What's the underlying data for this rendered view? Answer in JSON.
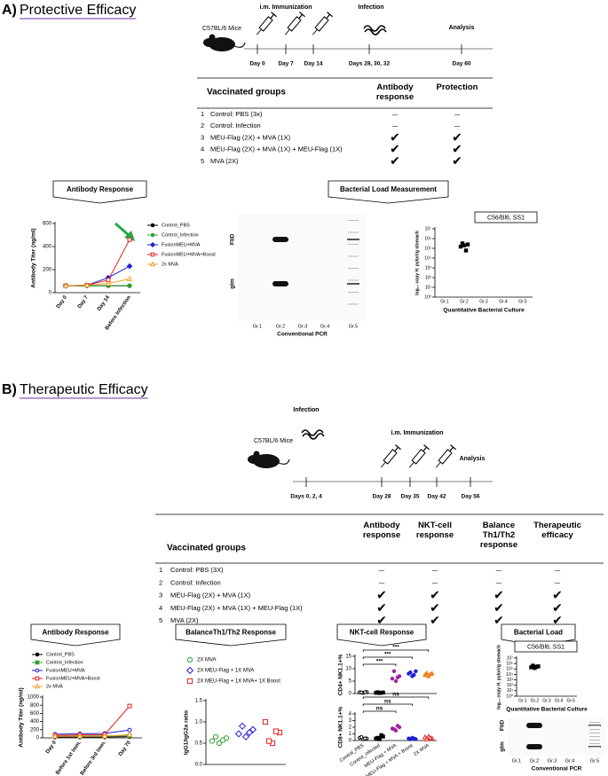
{
  "panel_a": {
    "letter": "A)",
    "title": "Protective Efficacy",
    "timeline": {
      "strain": "C57BL/6 Mice",
      "phases": [
        "i.m. Immunization",
        "Infection",
        "Analysis"
      ],
      "days": [
        "Day 0",
        "Day 7",
        "Day 14",
        "Days 28, 30, 32",
        "Day 60"
      ]
    },
    "table": {
      "columns": [
        "Vaccinated groups",
        "Antibody response",
        "Protection"
      ],
      "rows": [
        [
          "1",
          "Control: PBS (3x)",
          "—",
          "—"
        ],
        [
          "2",
          "Control: Infection",
          "—",
          "—"
        ],
        [
          "3",
          "MEU-Flag (2X) + MVA (1X)",
          "✔",
          "✔"
        ],
        [
          "4",
          "MEU-Flag (2X) + MVA (1X) + MEU-Flag (1X)",
          "✔",
          "✔"
        ],
        [
          "5",
          "MVA (2X)",
          "✔",
          "✔"
        ]
      ]
    },
    "banners": [
      "Antibody Response",
      "Bacterial Load Measurement"
    ],
    "pcr": {
      "bands": [
        "FliD",
        "glm"
      ],
      "lanes": [
        "Gr.1",
        "Gr.2",
        "Gr.3",
        "Gr.4",
        "Gr.5"
      ],
      "x_label": "Conventional PCR"
    }
  },
  "panel_b": {
    "letter": "B)",
    "title": "Therapeutic Efficacy",
    "timeline": {
      "strain": "C57BL/6 Mice",
      "phases": [
        "Infection",
        "i.m. Immunization",
        "Analysis"
      ],
      "days": [
        "Days 0, 2, 4",
        "Day 28",
        "Day 35",
        "Day 42",
        "Day 56"
      ]
    },
    "table": {
      "columns": [
        "Vaccinated groups",
        "Antibody response",
        "NKT-cell response",
        "Balance Th1/Th2 response",
        "Therapeutic efficacy"
      ],
      "rows": [
        [
          "1",
          "Control: PBS (3X)",
          "—",
          "—",
          "—",
          "—"
        ],
        [
          "2",
          "Control: Infection",
          "—",
          "—",
          "—",
          "—"
        ],
        [
          "3",
          "MEU-Flag (2X) + MVA (1X)",
          "✔",
          "✔",
          "✔",
          "✔"
        ],
        [
          "4",
          "MEU-Flag  (2X) + MVA (1X) + MEU-Flag  (1X)",
          "✔",
          "✔",
          "✔",
          "✔"
        ],
        [
          "5",
          "MVA (2X)",
          "✔",
          "✔",
          "✔",
          "✔"
        ]
      ]
    },
    "banners": [
      "Antibody Response",
      "BalanceTh1/Th2 Response",
      "NKT-cell Response",
      "Bacterial Load"
    ],
    "pcr": {
      "bands": [
        "FliD",
        "glm"
      ],
      "lanes": [
        "Gr.1",
        "Gr.2",
        "Gr.3",
        "Gr.4",
        "Gr.5"
      ],
      "x_label": "Conventional PCR"
    }
  },
  "chart_data": [
    {
      "type": "line",
      "y_label": "Antibody Titer (ng/ml)",
      "categories": [
        "Day 0",
        "Day 7",
        "Day 14",
        "Before Infection"
      ],
      "ylim": [
        0,
        600
      ],
      "yticks": [
        0,
        200,
        400,
        600
      ],
      "series": [
        {
          "name": "Control_PBS",
          "color": "#000000",
          "marker": "circle",
          "values": [
            60,
            60,
            60,
            60
          ]
        },
        {
          "name": "Control_Infection",
          "color": "#2ca02c",
          "marker": "circle",
          "values": [
            60,
            60,
            60,
            60
          ]
        },
        {
          "name": "FusionMEU+MVA",
          "color": "#1f1fd6",
          "marker": "diamond",
          "values": [
            60,
            65,
            130,
            230
          ]
        },
        {
          "name": "FusionMEU+MVA+Boost",
          "color": "#e02020",
          "marker": "square-open",
          "values": [
            60,
            65,
            110,
            460
          ]
        },
        {
          "name": "2x MVA",
          "color": "#f0a020",
          "marker": "triangle-open",
          "values": [
            60,
            65,
            80,
            120
          ]
        }
      ]
    },
    {
      "type": "dotplot",
      "label": "C56/Bl6, SS1",
      "y_label": "log₁₀ copy H. pylori/g stomach",
      "x_label": "Quantitative Bacterial Culture",
      "categories": [
        "Gr.1",
        "Gr.2",
        "Gr.3",
        "Gr.4",
        "Gr.5"
      ],
      "log_scale": true,
      "ylim": [
        1,
        10000000
      ],
      "yticks": [
        {
          "value": 1,
          "label": "10⁰"
        },
        {
          "value": 10,
          "label": "10¹"
        },
        {
          "value": 100,
          "label": "10²"
        },
        {
          "value": 1000,
          "label": "10³"
        },
        {
          "value": 10000,
          "label": "10⁴"
        },
        {
          "value": 100000,
          "label": "10⁵"
        },
        {
          "value": 1000000,
          "label": "10⁶"
        },
        {
          "value": 10000000,
          "label": "10⁷"
        }
      ],
      "color": "#000000",
      "marker": "square",
      "values": [
        [],
        [
          150000,
          250000,
          200000,
          320000,
          60000
        ],
        [],
        [],
        []
      ]
    },
    {
      "type": "line",
      "y_label": "Antibody Titer (ng/ml)",
      "categories": [
        "Day 0",
        "Before 1st Imm.",
        "Before 3rd Imm.",
        "Day 70"
      ],
      "ylim": [
        0,
        1000
      ],
      "yticks": [
        0,
        200,
        400,
        600,
        800,
        1000
      ],
      "series": [
        {
          "name": "Control_PBS",
          "color": "#000000",
          "marker": "circle",
          "values": [
            20,
            20,
            20,
            30
          ]
        },
        {
          "name": "Control_Infection",
          "color": "#2ca02c",
          "marker": "square",
          "values": [
            50,
            50,
            50,
            50
          ]
        },
        {
          "name": "FusionMEU+MVA",
          "color": "#1f1fd6",
          "marker": "circle-open",
          "values": [
            90,
            100,
            110,
            190
          ]
        },
        {
          "name": "FusionMEU+MVA+Boost",
          "color": "#e02020",
          "marker": "square-open",
          "values": [
            60,
            70,
            80,
            780
          ]
        },
        {
          "name": "2x MVA",
          "color": "#f0a020",
          "marker": "triangle-open",
          "values": [
            40,
            40,
            40,
            80
          ]
        }
      ]
    },
    {
      "type": "scatter",
      "y_label": "IgG1/IgG2a ratio",
      "ylim": [
        0,
        1.5
      ],
      "yticks": [
        {
          "value": 0,
          "label": "0.0"
        },
        0.5,
        {
          "value": 1,
          "label": "1.0"
        },
        1.5
      ],
      "series": [
        {
          "name": "2X MVA",
          "color": "#2ca02c",
          "marker": "circle-open",
          "values": [
            0.55,
            0.62,
            0.5,
            0.65,
            0.57
          ]
        },
        {
          "name": "2X MEU-Flag + 1X MVA",
          "color": "#1f1fd6",
          "marker": "diamond-open",
          "values": [
            0.72,
            0.82,
            0.65,
            0.9,
            0.75
          ]
        },
        {
          "name": "2X MEU-Flag + 1X MVA+ 1X Boost",
          "color": "#e02020",
          "marker": "square-open",
          "values": [
            1.0,
            0.75,
            0.5,
            0.55,
            0.78
          ]
        }
      ]
    },
    {
      "type": "dotplot",
      "y_label": "CD4+ NK1.1+%",
      "ylim": [
        0,
        15
      ],
      "yticks": [
        0,
        5,
        10,
        15
      ],
      "annotations": [
        "***",
        "***",
        "***"
      ],
      "colors": [
        "#000000",
        "#000000",
        "#a020a0",
        "#1f1fd6",
        "#f08020"
      ],
      "markers": [
        "circle-open",
        "square",
        "circle",
        "circle",
        "triangle"
      ],
      "values": [
        [
          0.5,
          0.6,
          0.3,
          0.4,
          0.5
        ],
        [
          0.3,
          0.4,
          0.2,
          0.5,
          0.3
        ],
        [
          6,
          7,
          5,
          9,
          6.5
        ],
        [
          8,
          9,
          7,
          8.5,
          7.5
        ],
        [
          7.5,
          8,
          7,
          8.2,
          7.8
        ]
      ]
    },
    {
      "type": "dotplot",
      "y_label": "CD8+ NK1.1+%",
      "ylim": [
        0,
        4
      ],
      "yticks": [
        0,
        1,
        2,
        3,
        4
      ],
      "annotations": [
        "ns",
        "ns",
        "ns"
      ],
      "categories": [
        "Control_PBS",
        "Control_infected",
        "MEU-Flag + MVA",
        "MEU-Flag + MVA + Boost",
        "2X MVA"
      ],
      "colors": [
        "#000000",
        "#000000",
        "#a020a0",
        "#1f1fd6",
        "#e02020"
      ],
      "markers": [
        "circle-open",
        "square",
        "circle",
        "circle",
        "triangle-open"
      ],
      "values": [
        [
          0.4,
          0.3,
          0.2,
          0.5,
          0.3
        ],
        [
          0.3,
          0.6,
          0.2,
          0.4,
          0.8
        ],
        [
          1.8,
          2.0,
          1.5,
          1.7,
          2.2
        ],
        [
          0.3,
          0.2,
          0.4,
          0.2,
          0.3
        ],
        [
          0.5,
          0.3,
          0.6,
          0.2,
          0.4
        ]
      ]
    },
    {
      "type": "dotplot",
      "label": "C56/Bl6, SS1",
      "y_label": "log₁₀ copy H. pylori/g stomach",
      "x_label": "Quantitative Bacterial Culture",
      "categories": [
        "Gr.1",
        "Gr.2",
        "Gr.3",
        "Gr.4",
        "Gr.5"
      ],
      "log_scale": true,
      "ylim": [
        1,
        10000000
      ],
      "yticks": [
        {
          "value": 1,
          "label": "10⁰"
        },
        {
          "value": 10,
          "label": "10¹"
        },
        {
          "value": 100,
          "label": "10²"
        },
        {
          "value": 1000,
          "label": "10³"
        },
        {
          "value": 10000,
          "label": "10⁴"
        },
        {
          "value": 100000,
          "label": "10⁵"
        },
        {
          "value": 1000000,
          "label": "10⁶"
        },
        {
          "value": 10000000,
          "label": "10⁷"
        }
      ],
      "color": "#000000",
      "marker": "square",
      "values": [
        [],
        [
          200000,
          300000,
          150000,
          400000,
          250000
        ],
        [],
        [],
        []
      ]
    }
  ]
}
